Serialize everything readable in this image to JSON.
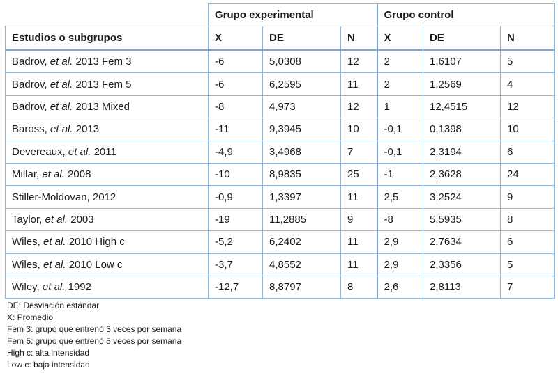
{
  "table": {
    "group_headers": {
      "experimental": "Grupo experimental",
      "control": "Grupo control"
    },
    "columns": {
      "study": "Estudios o subgrupos",
      "exp_x": "X",
      "exp_de": "DE",
      "exp_n": "N",
      "ctl_x": "X",
      "ctl_de": "DE",
      "ctl_n": "N"
    },
    "rows": [
      {
        "author": "Badrov, ",
        "etal": "et al.",
        "rest": " 2013 Fem 3",
        "exp_x": "-6",
        "exp_de": "5,0308",
        "exp_n": "12",
        "ctl_x": "2",
        "ctl_de": "1,6107",
        "ctl_n": "5"
      },
      {
        "author": "Badrov, ",
        "etal": "et al.",
        "rest": " 2013 Fem 5",
        "exp_x": "-6",
        "exp_de": "6,2595",
        "exp_n": "11",
        "ctl_x": "2",
        "ctl_de": "1,2569",
        "ctl_n": "4"
      },
      {
        "author": "Badrov, ",
        "etal": "et al.",
        "rest": " 2013 Mixed",
        "exp_x": "-8",
        "exp_de": "4,973",
        "exp_n": "12",
        "ctl_x": "1",
        "ctl_de": "12,4515",
        "ctl_n": "12"
      },
      {
        "author": "Baross, ",
        "etal": "et al.",
        "rest": " 2013",
        "exp_x": "-11",
        "exp_de": "9,3945",
        "exp_n": "10",
        "ctl_x": "-0,1",
        "ctl_de": "0,1398",
        "ctl_n": "10"
      },
      {
        "author": "Devereaux, ",
        "etal": "et al.",
        "rest": " 2011",
        "exp_x": "-4,9",
        "exp_de": "3,4968",
        "exp_n": "7",
        "ctl_x": "-0,1",
        "ctl_de": "2,3194",
        "ctl_n": "6"
      },
      {
        "author": "Millar, ",
        "etal": "et al.",
        "rest": " 2008",
        "exp_x": "-10",
        "exp_de": "8,9835",
        "exp_n": "25",
        "ctl_x": "-1",
        "ctl_de": "2,3628",
        "ctl_n": "24"
      },
      {
        "author": "Stiller-Moldovan, 2012",
        "etal": "",
        "rest": "",
        "exp_x": "-0,9",
        "exp_de": "1,3397",
        "exp_n": "11",
        "ctl_x": "2,5",
        "ctl_de": "3,2524",
        "ctl_n": "9"
      },
      {
        "author": "Taylor, ",
        "etal": "et al.",
        "rest": " 2003",
        "exp_x": "-19",
        "exp_de": "11,2885",
        "exp_n": "9",
        "ctl_x": "-8",
        "ctl_de": "5,5935",
        "ctl_n": "8"
      },
      {
        "author": "Wiles, ",
        "etal": "et al.",
        "rest": " 2010 High c",
        "exp_x": "-5,2",
        "exp_de": "6,2402",
        "exp_n": "11",
        "ctl_x": "2,9",
        "ctl_de": "2,7634",
        "ctl_n": "6"
      },
      {
        "author": "Wiles, ",
        "etal": "et al.",
        "rest": " 2010 Low c",
        "exp_x": "-3,7",
        "exp_de": "4,8552",
        "exp_n": "11",
        "ctl_x": "2,9",
        "ctl_de": "2,3356",
        "ctl_n": "5"
      },
      {
        "author": "Wiley, ",
        "etal": "et al.",
        "rest": " 1992",
        "exp_x": "-12,7",
        "exp_de": "8,8797",
        "exp_n": "8",
        "ctl_x": "2,6",
        "ctl_de": "2,8113",
        "ctl_n": "7"
      }
    ]
  },
  "notes": [
    "DE: Desviación estándar",
    "X: Promedio",
    "Fem 3: grupo que entrenó 3 veces por semana",
    "Fem 5: grupo que entrenó 5 veces por semana",
    "High c: alta intensidad",
    "Low c: baja intensidad"
  ]
}
